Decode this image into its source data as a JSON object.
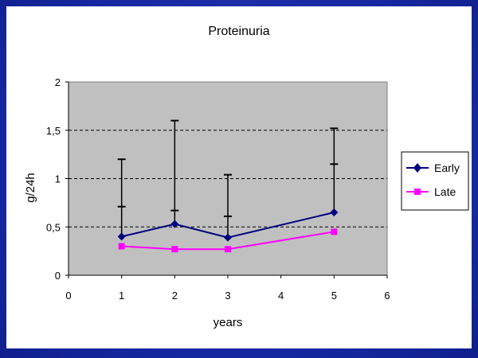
{
  "chart_data": {
    "type": "line",
    "title": "Proteinuria",
    "xlabel": "years",
    "ylabel": "g/24h",
    "xlim": [
      0,
      6
    ],
    "ylim": [
      0,
      2
    ],
    "x_ticks": [
      "0",
      "1",
      "2",
      "3",
      "4",
      "5",
      "6"
    ],
    "y_ticks": [
      "0",
      "0,5",
      "1",
      "1,5",
      "2"
    ],
    "grid": "horizontal dashed",
    "legend": "right",
    "plot_background": "#c0c0c0",
    "series": [
      {
        "name": "Early",
        "color": "#000080",
        "marker": "diamond",
        "x": [
          1,
          2,
          3,
          5
        ],
        "y": [
          0.4,
          0.53,
          0.39,
          0.65
        ],
        "error_plus": [
          0.8,
          1.07,
          0.65,
          0.87
        ],
        "error_whisker_mid": [
          0.71,
          0.67,
          0.61,
          1.15
        ]
      },
      {
        "name": "Late",
        "color": "#ff00ff",
        "marker": "square",
        "x": [
          1,
          2,
          3,
          5
        ],
        "y": [
          0.3,
          0.27,
          0.27,
          0.45
        ]
      }
    ]
  }
}
